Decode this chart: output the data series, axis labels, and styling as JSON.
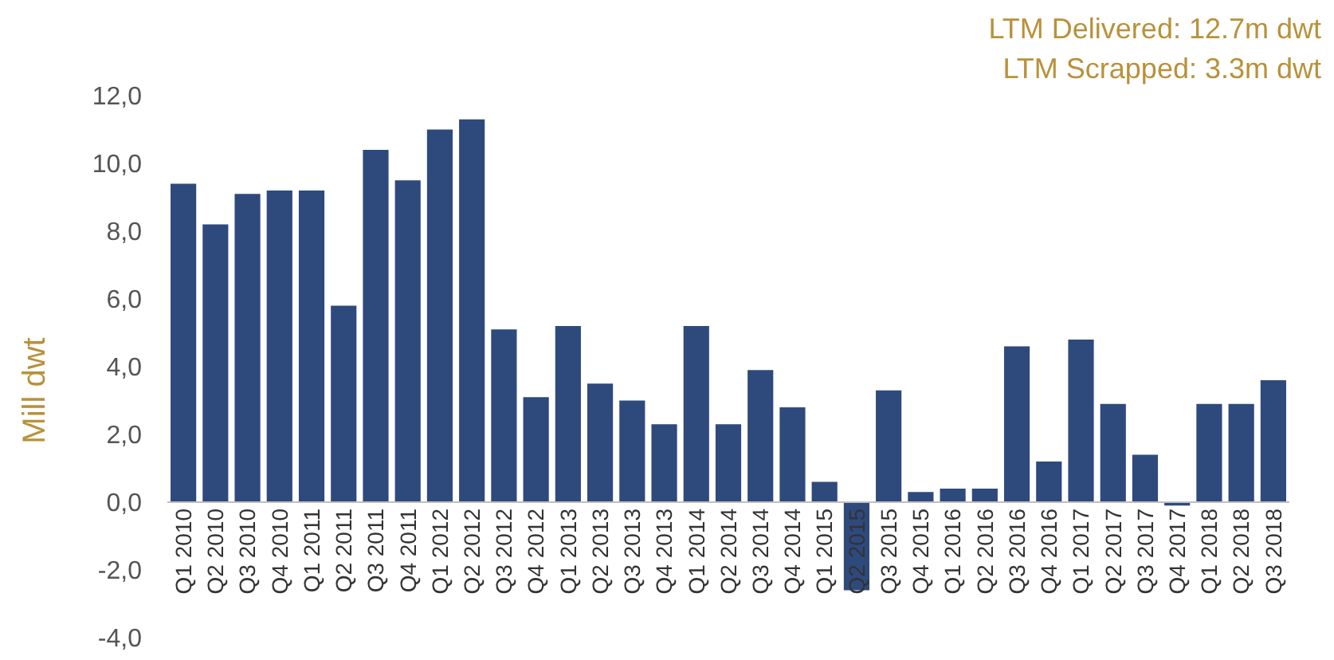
{
  "chart_data": {
    "type": "bar",
    "ylabel": "Mill dwt",
    "annotations": [
      "LTM Delivered: 12.7m dwt",
      "LTM Scrapped: 3.3m dwt"
    ],
    "categories": [
      "Q1 2010",
      "Q2 2010",
      "Q3 2010",
      "Q4 2010",
      "Q1 2011",
      "Q2 2011",
      "Q3 2011",
      "Q4 2011",
      "Q1 2012",
      "Q2 2012",
      "Q3 2012",
      "Q4 2012",
      "Q1 2013",
      "Q2 2013",
      "Q3 2013",
      "Q4 2013",
      "Q1 2014",
      "Q2 2014",
      "Q3 2014",
      "Q4 2014",
      "Q1 2015",
      "Q2 2015",
      "Q3 2015",
      "Q4 2015",
      "Q1 2016",
      "Q2 2016",
      "Q3 2016",
      "Q4 2016",
      "Q1 2017",
      "Q2 2017",
      "Q3 2017",
      "Q4 2017",
      "Q1 2018",
      "Q2 2018",
      "Q3 2018"
    ],
    "values": [
      9.4,
      8.2,
      9.1,
      9.2,
      9.2,
      5.8,
      10.4,
      9.5,
      11.0,
      11.3,
      5.1,
      3.1,
      5.2,
      3.5,
      3.0,
      2.3,
      5.2,
      2.3,
      3.9,
      2.8,
      0.6,
      -2.6,
      3.3,
      0.3,
      0.4,
      0.4,
      4.6,
      1.2,
      4.8,
      2.9,
      1.4,
      -0.1,
      2.9,
      2.9,
      3.6
    ],
    "color": "#2e4a7d",
    "ylim": [
      -4,
      12
    ],
    "yticks": [
      {
        "value": -4,
        "label": "-4,0"
      },
      {
        "value": -2,
        "label": "-2,0"
      },
      {
        "value": 0,
        "label": "0,0"
      },
      {
        "value": 2,
        "label": "2,0"
      },
      {
        "value": 4,
        "label": "4,0"
      },
      {
        "value": 6,
        "label": "6,0"
      },
      {
        "value": 8,
        "label": "8,0"
      },
      {
        "value": 10,
        "label": "10,0"
      },
      {
        "value": 12,
        "label": "12,0"
      }
    ]
  }
}
